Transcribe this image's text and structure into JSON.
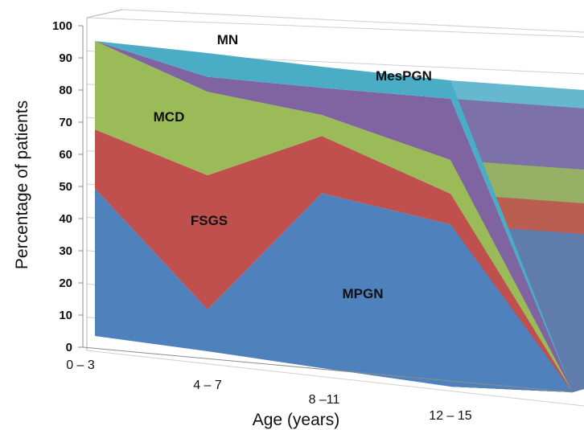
{
  "chart_data": {
    "type": "area",
    "stacked": true,
    "three_d": true,
    "categories": [
      "0 – 3",
      "4 – 7",
      "8 –11",
      "12 – 15"
    ],
    "xlabel": "Age (years)",
    "ylabel": "Percentage of patients",
    "ylim": [
      0,
      100
    ],
    "yticks": [
      0,
      10,
      20,
      30,
      40,
      50,
      60,
      70,
      80,
      90,
      100
    ],
    "grid": true,
    "series": [
      {
        "name": "MPGN",
        "values": [
          50,
          14,
          58,
          53
        ],
        "color": "#4F81BD"
      },
      {
        "name": "FSGS",
        "values": [
          20,
          45,
          19,
          10
        ],
        "color": "#C0504D"
      },
      {
        "name": "MCD",
        "values": [
          30,
          28,
          7,
          11
        ],
        "color": "#9BBB59"
      },
      {
        "name": "MesPGN",
        "values": [
          0,
          5,
          9,
          20
        ],
        "color": "#8064A2"
      },
      {
        "name": "MN",
        "values": [
          0,
          8,
          7,
          6
        ],
        "color": "#4BACC6"
      }
    ]
  }
}
